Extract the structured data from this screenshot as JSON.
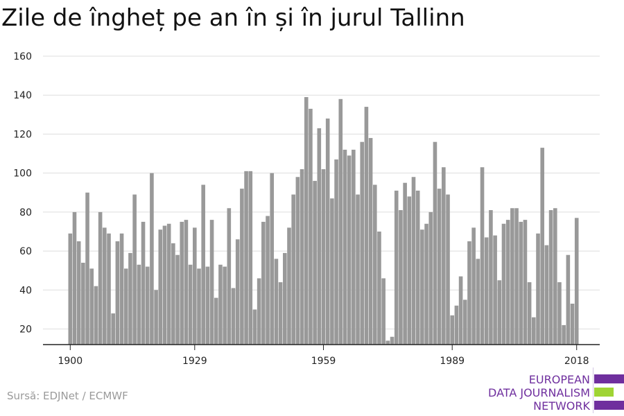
{
  "title": "Zile de îngheț pe an în și în jurul Tallinn",
  "source": "Sursă: EDJNet / ECMWF",
  "brand": {
    "lines": [
      "EUROPEAN",
      "DATA JOURNALISM",
      "NETWORK"
    ],
    "colors": {
      "purple": "#6f2f9e",
      "green": "#9fd434"
    }
  },
  "colors": {
    "bar": "#999999",
    "grid": "#dedede",
    "axis": "#222222"
  },
  "chart_data": {
    "type": "bar",
    "title": "Zile de îngheț pe an în și în jurul Tallinn",
    "xlabel": "",
    "ylabel": "",
    "x_start": 1900,
    "x_ticks": [
      1900,
      1929,
      1959,
      1989,
      2018
    ],
    "y_ticks": [
      20,
      40,
      60,
      80,
      100,
      120,
      140,
      160
    ],
    "ylim": [
      12,
      160
    ],
    "grid": "horizontal",
    "legend": "none",
    "values": [
      69,
      80,
      65,
      54,
      90,
      51,
      42,
      80,
      72,
      69,
      28,
      65,
      69,
      51,
      59,
      89,
      53,
      75,
      52,
      100,
      40,
      71,
      73,
      74,
      64,
      58,
      75,
      76,
      53,
      72,
      51,
      94,
      52,
      76,
      36,
      53,
      52,
      82,
      41,
      66,
      92,
      101,
      101,
      30,
      46,
      75,
      78,
      100,
      56,
      44,
      59,
      72,
      89,
      98,
      102,
      139,
      133,
      96,
      123,
      102,
      128,
      87,
      107,
      138,
      112,
      109,
      112,
      89,
      116,
      134,
      118,
      94,
      70,
      46,
      14,
      16,
      91,
      81,
      95,
      88,
      98,
      91,
      71,
      74,
      80,
      116,
      92,
      103,
      89,
      27,
      32,
      47,
      35,
      65,
      72,
      56,
      103,
      67,
      81,
      68,
      45,
      74,
      76,
      82,
      82,
      75,
      76,
      44,
      26,
      69,
      113,
      63,
      81,
      82,
      44,
      22,
      58,
      33,
      77
    ]
  }
}
